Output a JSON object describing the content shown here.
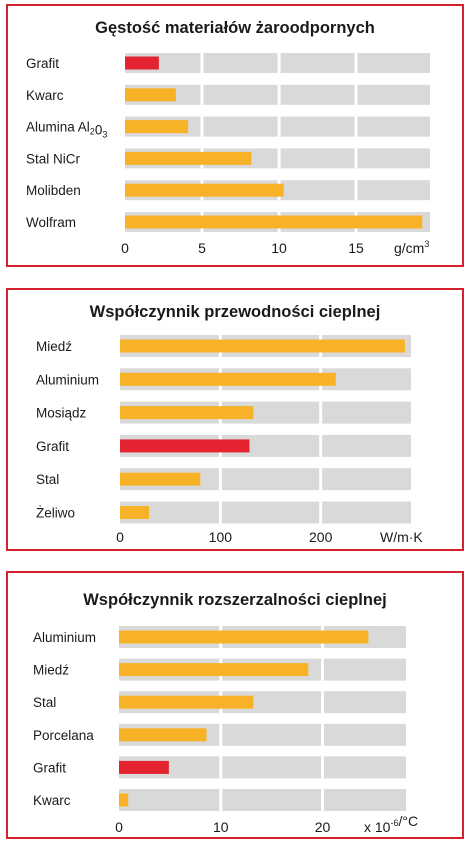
{
  "colors": {
    "bar": "#f7b228",
    "highlight": "#e3232f",
    "band": "#d9d9d9",
    "border": "#d4202c"
  },
  "chart_data": [
    {
      "type": "bar",
      "orientation": "horizontal",
      "title": "Gęstość materiałów żaroodpornych",
      "categories": [
        "Grafit",
        "Kwarc",
        "Alumina Al₂0₃",
        "Stal NiCr",
        "Molibden",
        "Wolfram"
      ],
      "values": [
        2.2,
        3.3,
        4.1,
        8.2,
        10.3,
        19.3
      ],
      "highlighted": [
        "Grafit"
      ],
      "xticks": [
        0,
        5,
        10,
        15
      ],
      "xlim": [
        0,
        19.8
      ],
      "unit": "g/cm³"
    },
    {
      "type": "bar",
      "orientation": "horizontal",
      "title": "Współczynnik przewodności cieplnej",
      "categories": [
        "Miedź",
        "Aluminium",
        "Mosiądz",
        "Grafit",
        "Stal",
        "Żeliwo"
      ],
      "values": [
        284,
        215,
        133,
        129,
        80,
        29
      ],
      "highlighted": [
        "Grafit"
      ],
      "xticks": [
        0,
        100,
        200
      ],
      "xlim": [
        0,
        290
      ],
      "unit": "W/m·K"
    },
    {
      "type": "bar",
      "orientation": "horizontal",
      "title": "Współczynnik rozszerzalności cieplnej",
      "categories": [
        "Aluminium",
        "Miedź",
        "Stal",
        "Porcelana",
        "Grafit",
        "Kwarc"
      ],
      "values": [
        24.5,
        18.6,
        13.2,
        8.6,
        4.9,
        0.9
      ],
      "highlighted": [
        "Grafit"
      ],
      "xticks": [
        0,
        10,
        20
      ],
      "xlim": [
        0,
        28.2
      ],
      "unit": "x 10⁻⁶/°C"
    }
  ]
}
